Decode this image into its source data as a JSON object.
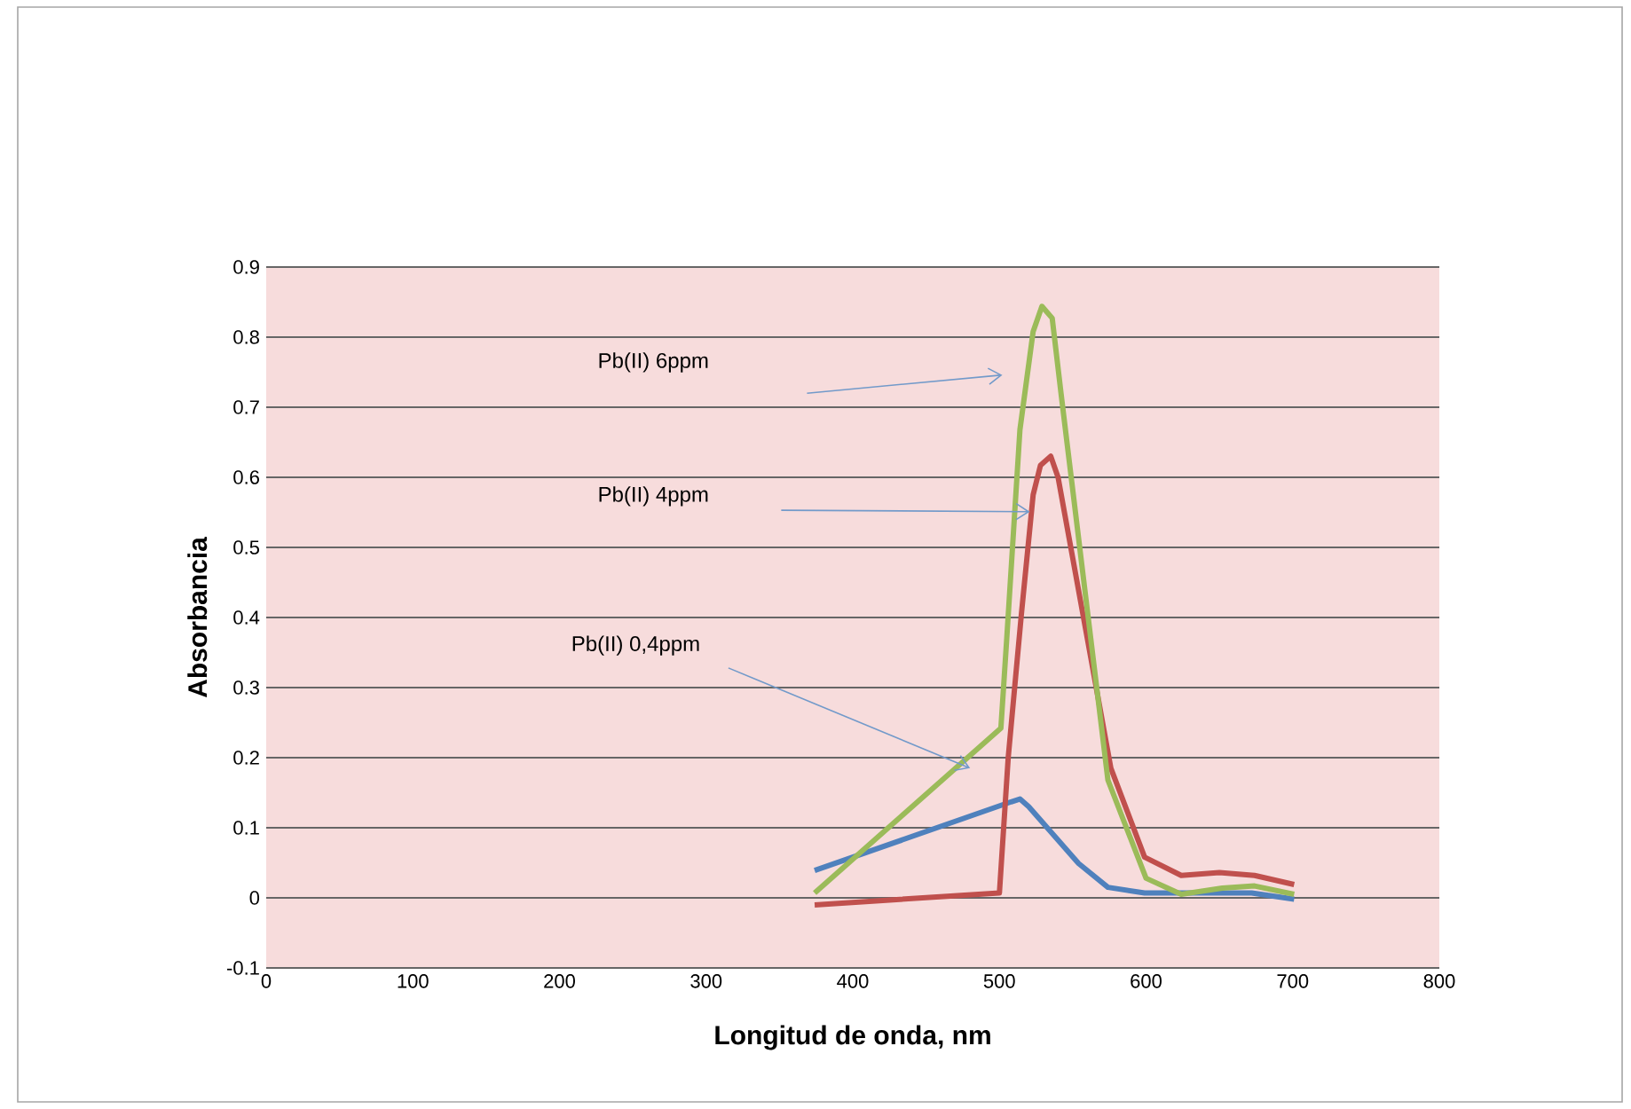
{
  "chart_data": {
    "type": "line",
    "xlabel": "Longitud de onda,  nm",
    "ylabel": "Absorbancia",
    "xlim": [
      0,
      800
    ],
    "xticks": [
      0,
      100,
      200,
      300,
      400,
      500,
      600,
      700,
      800
    ],
    "ylim": [
      -0.1,
      0.9
    ],
    "yticks": [
      -0.1,
      0,
      0.1,
      0.2,
      0.3,
      0.4,
      0.5,
      0.6,
      0.7,
      0.8,
      0.9
    ],
    "grid": "y",
    "marker": "none",
    "line_style": "solid",
    "series": [
      {
        "color": "#4f81bd",
        "x": [
          374,
          508,
          514,
          520,
          554,
          574,
          599,
          628,
          672,
          701
        ],
        "values": [
          0.039,
          0.137,
          0.141,
          0.13,
          0.049,
          0.015,
          0.007,
          0.007,
          0.007,
          -0.002
        ]
      },
      {
        "color": "#c0504d",
        "x": [
          374,
          500,
          506,
          515,
          523,
          528,
          535,
          540,
          576,
          599,
          624,
          650,
          674,
          701
        ],
        "values": [
          -0.01,
          0.007,
          0.2,
          0.405,
          0.575,
          0.617,
          0.63,
          0.6,
          0.185,
          0.058,
          0.032,
          0.036,
          0.032,
          0.019
        ]
      },
      {
        "color": "#9bbb59",
        "x": [
          374,
          501,
          505,
          514,
          523,
          529,
          536,
          542,
          574,
          600,
          624,
          652,
          674,
          701
        ],
        "values": [
          0.007,
          0.242,
          0.37,
          0.668,
          0.808,
          0.844,
          0.827,
          0.72,
          0.168,
          0.028,
          0.005,
          0.014,
          0.017,
          0.005
        ]
      }
    ],
    "annotations": [
      "Pb(II) 6ppm",
      "Pb(II) 4ppm",
      "Pb(II) 0,4ppm"
    ]
  }
}
